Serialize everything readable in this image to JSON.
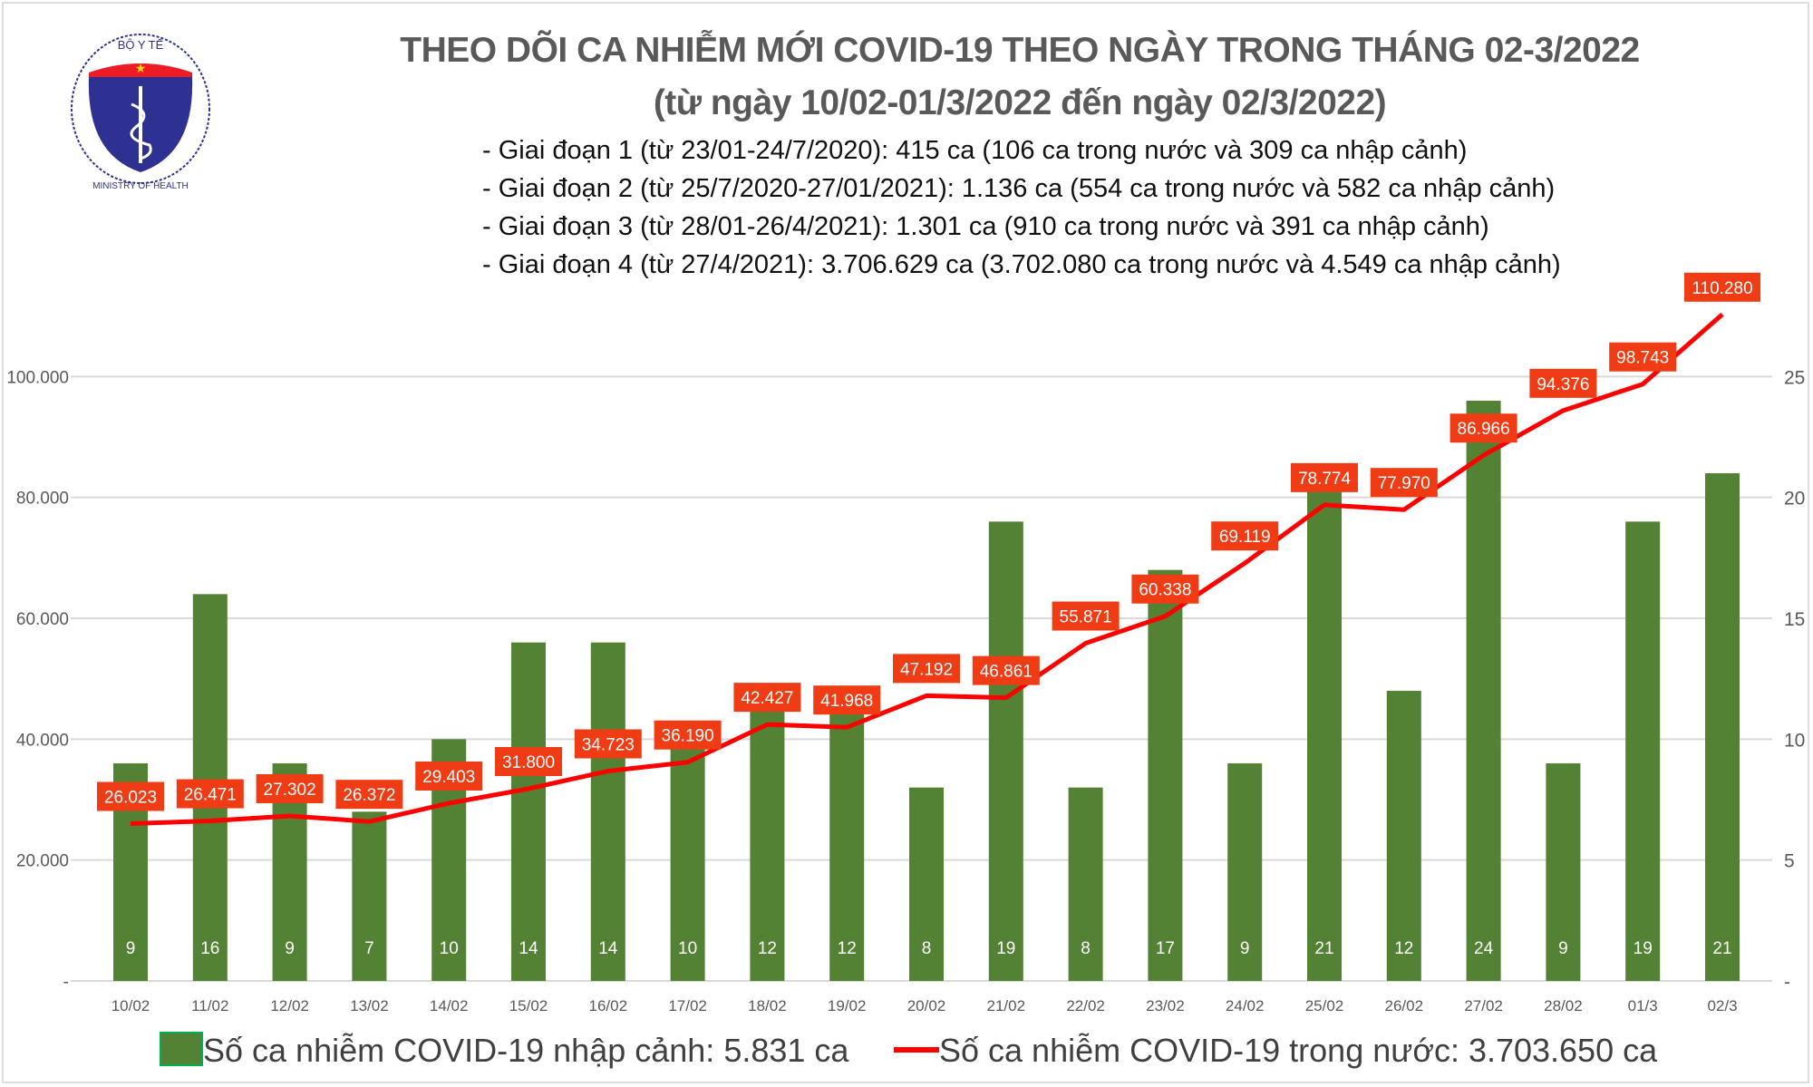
{
  "logo": {
    "top_text": "BỘ Y TẾ",
    "bottom_text": "MINISTRY OF HEALTH"
  },
  "title_line1": "THEO DÕI CA NHIỄM MỚI COVID-19 THEO NGÀY TRONG THÁNG 02-3/2022",
  "title_line2": "(từ ngày 10/02-01/3/2022 đến ngày 02/3/2022)",
  "phases": [
    "- Giai đoạn 1 (từ 23/01-24/7/2020): 415 ca (106 ca trong nước và 309 ca nhập cảnh)",
    "- Giai đoạn 2 (từ 25/7/2020-27/01/2021): 1.136 ca (554 ca trong nước và 582 ca nhập cảnh)",
    "- Giai đoạn 3 (từ 28/01-26/4/2021): 1.301 ca (910 ca trong nước và 391 ca nhập cảnh)",
    "- Giai đoạn 4 (từ 27/4/2021): 3.706.629 ca (3.702.080 ca trong nước và 4.549 ca nhập cảnh)"
  ],
  "chart_data": {
    "type": "bar+line",
    "categories": [
      "10/02",
      "11/02",
      "12/02",
      "13/02",
      "14/02",
      "15/02",
      "16/02",
      "17/02",
      "18/02",
      "19/02",
      "20/02",
      "21/02",
      "22/02",
      "23/02",
      "24/02",
      "25/02",
      "26/02",
      "27/02",
      "28/02",
      "01/3",
      "02/3"
    ],
    "series": [
      {
        "name": "Số ca nhiễm COVID-19 nhập cảnh: 5.831 ca",
        "type": "bar",
        "axis": "right",
        "color": "#548235",
        "values": [
          9,
          16,
          9,
          7,
          10,
          14,
          14,
          10,
          12,
          12,
          8,
          19,
          8,
          17,
          9,
          21,
          12,
          24,
          9,
          19,
          21
        ],
        "labels": [
          "9",
          "16",
          "9",
          "7",
          "10",
          "14",
          "14",
          "10",
          "12",
          "12",
          "8",
          "19",
          "8",
          "17",
          "9",
          "21",
          "12",
          "24",
          "9",
          "19",
          "21"
        ]
      },
      {
        "name": "Số ca nhiễm COVID-19 trong nước: 3.703.650 ca",
        "type": "line",
        "axis": "left",
        "color": "#ff0000",
        "values": [
          26023,
          26471,
          27302,
          26372,
          29403,
          31800,
          34723,
          36190,
          42427,
          41968,
          47192,
          46861,
          55871,
          60338,
          69119,
          78774,
          77970,
          86966,
          94376,
          98743,
          110280
        ],
        "labels": [
          "26.023",
          "26.471",
          "27.302",
          "26.372",
          "29.403",
          "31.800",
          "34.723",
          "36.190",
          "42.427",
          "41.968",
          "47.192",
          "46.861",
          "55.871",
          "60.338",
          "69.119",
          "78.774",
          "77.970",
          "86.966",
          "94.376",
          "98.743",
          "110.280"
        ]
      }
    ],
    "left_axis": {
      "ylim": [
        0,
        120000
      ],
      "ticks": [
        0,
        20000,
        40000,
        60000,
        80000,
        100000
      ],
      "tick_labels": [
        "-",
        "20.000",
        "40.000",
        "60.000",
        "80.000",
        "100.000"
      ]
    },
    "right_axis": {
      "ylim": [
        0,
        30
      ],
      "ticks": [
        0,
        5,
        10,
        15,
        20,
        25
      ],
      "tick_labels": [
        "-",
        "5",
        "10",
        "15",
        "20",
        "25"
      ]
    },
    "grid": true,
    "legend_position": "bottom",
    "label_color": "#f03c14"
  }
}
